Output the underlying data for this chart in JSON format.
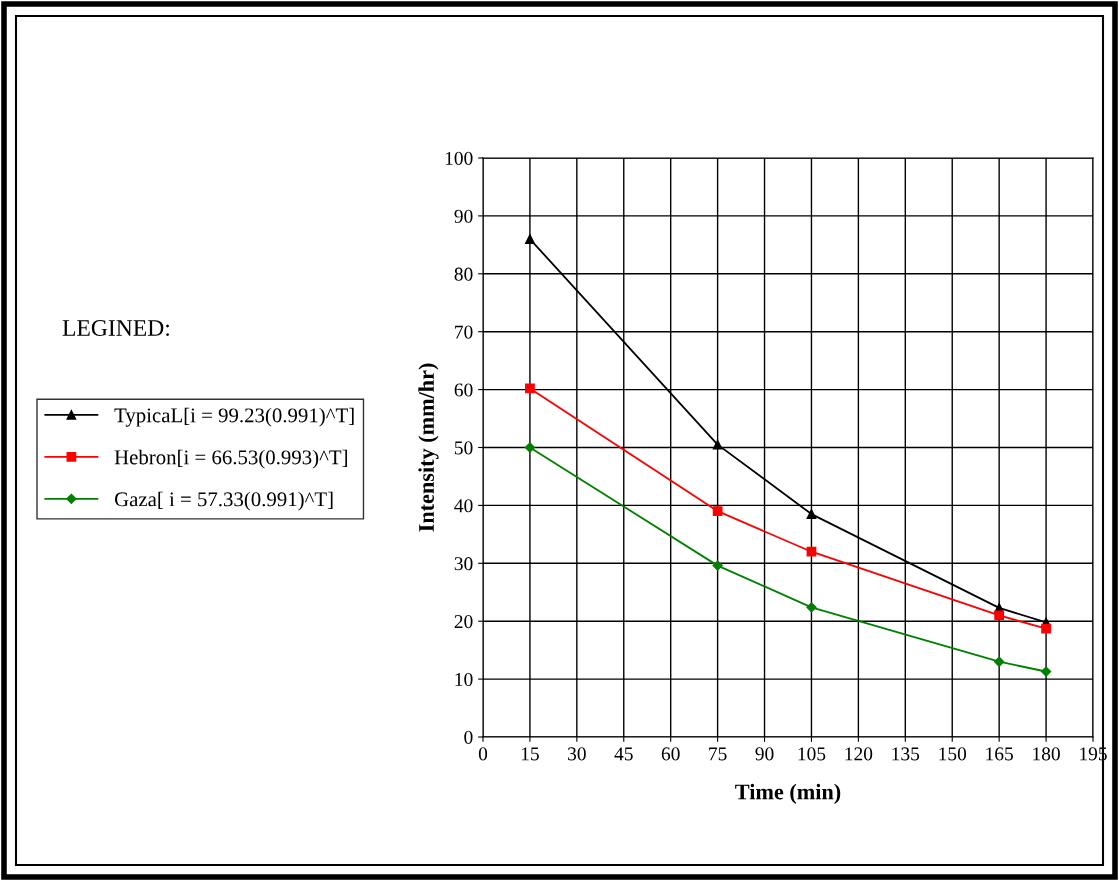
{
  "chart_data": {
    "type": "line",
    "xlabel": "Time (min)",
    "ylabel": "Intensity (mm/hr)",
    "legend_title": "LEGINED:",
    "x": [
      15,
      75,
      105,
      165,
      180
    ],
    "series": [
      {
        "name": "TypicaL[i = 99.23(0.991)^T]",
        "color": "#000000",
        "marker": "triangle",
        "values": [
          86,
          50.5,
          38.5,
          22.3,
          19.8
        ]
      },
      {
        "name": "Hebron[i = 66.53(0.993)^T]",
        "color": "#ff0000",
        "marker": "square",
        "values": [
          60.2,
          39,
          32,
          21,
          18.7
        ]
      },
      {
        "name": "Gaza[ i = 57.33(0.991)^T]",
        "color": "#008000",
        "marker": "diamond",
        "values": [
          50,
          29.6,
          22.4,
          13,
          11.3
        ]
      }
    ],
    "xlim": [
      0,
      195
    ],
    "xticks": [
      0,
      15,
      30,
      45,
      60,
      75,
      90,
      105,
      120,
      135,
      150,
      165,
      180,
      195
    ],
    "ylim": [
      0,
      100
    ],
    "yticks": [
      0,
      10,
      20,
      30,
      40,
      50,
      60,
      70,
      80,
      90,
      100
    ],
    "grid": true,
    "legend": "left",
    "line_style": "solid"
  }
}
